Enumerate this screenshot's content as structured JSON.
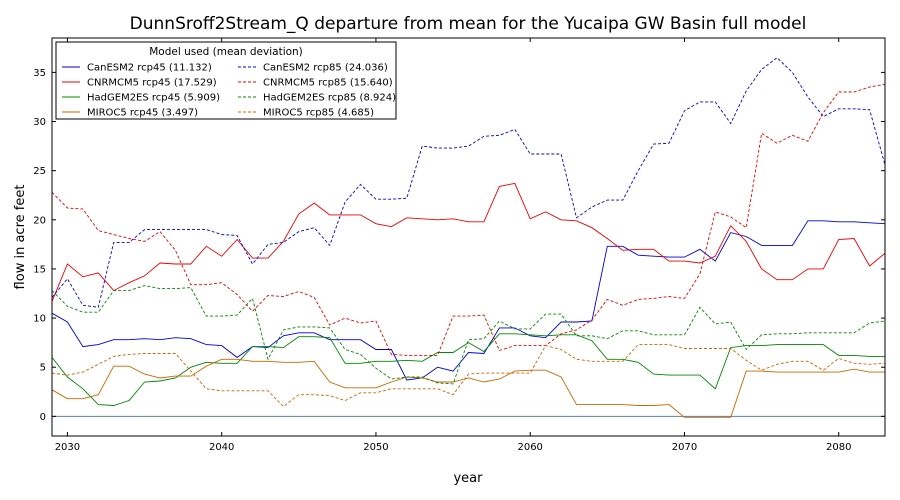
{
  "chart_data": {
    "type": "line",
    "title": "DunnSroff2Stream_Q departure from mean for the Yucaipa GW Basin full model",
    "xlabel": "year",
    "ylabel": "flow in acre feet",
    "xlim": [
      2029,
      2083
    ],
    "ylim": [
      -2,
      38.5
    ],
    "x_ticks": [
      2030,
      2040,
      2050,
      2060,
      2070,
      2080
    ],
    "y_ticks": [
      0,
      5,
      10,
      15,
      20,
      25,
      30,
      35
    ],
    "zero_line": {
      "value": 0,
      "color": "#5b7fa6"
    },
    "legend": {
      "title": "Model used (mean deviation)",
      "placement": "upper-left",
      "columns": 2
    },
    "x": [
      2029,
      2030,
      2031,
      2032,
      2033,
      2034,
      2035,
      2036,
      2037,
      2038,
      2039,
      2040,
      2041,
      2042,
      2043,
      2044,
      2045,
      2046,
      2047,
      2048,
      2049,
      2050,
      2051,
      2052,
      2053,
      2054,
      2055,
      2056,
      2057,
      2058,
      2059,
      2060,
      2061,
      2062,
      2063,
      2064,
      2065,
      2066,
      2067,
      2068,
      2069,
      2070,
      2071,
      2072,
      2073,
      2074,
      2075,
      2076,
      2077,
      2078,
      2079,
      2080,
      2081,
      2082,
      2083
    ],
    "series": [
      {
        "name": "CanESM2 rcp45 (11.132)",
        "color": "#0000dd",
        "dash": "solid",
        "values": [
          10.5,
          9.6,
          7.1,
          7.3,
          7.8,
          7.8,
          7.9,
          7.8,
          8.0,
          7.9,
          7.3,
          7.2,
          6.0,
          7.1,
          7.0,
          8.2,
          8.5,
          8.5,
          7.8,
          7.8,
          7.8,
          6.8,
          6.8,
          3.7,
          3.9,
          5.0,
          4.6,
          6.5,
          6.4,
          9.0,
          9.0,
          8.2,
          8.0,
          9.6,
          9.6,
          9.7,
          17.3,
          17.3,
          16.4,
          16.3,
          16.2,
          16.2,
          17.0,
          15.8,
          18.7,
          18.3,
          17.4,
          17.4,
          17.4,
          19.9,
          19.9,
          19.8,
          19.8,
          19.7,
          19.6
        ]
      },
      {
        "name": "CNRMCM5 rcp45 (17.529)",
        "color": "#ee0000",
        "dash": "solid",
        "values": [
          11.7,
          15.5,
          14.2,
          14.6,
          12.8,
          13.6,
          14.3,
          15.6,
          15.5,
          15.5,
          17.3,
          16.3,
          18.0,
          16.1,
          16.1,
          17.8,
          20.6,
          21.7,
          20.5,
          20.5,
          20.5,
          19.6,
          19.3,
          20.2,
          20.1,
          20.0,
          20.1,
          19.8,
          19.8,
          23.4,
          23.7,
          20.1,
          20.8,
          20.0,
          19.9,
          19.2,
          18.1,
          16.9,
          17.0,
          17.0,
          15.8,
          15.8,
          15.6,
          16.3,
          19.4,
          17.8,
          15.0,
          13.9,
          13.9,
          15.0,
          15.0,
          18.0,
          18.1,
          15.3,
          16.6
        ]
      },
      {
        "name": "HadGEM2ES rcp45 (5.909)",
        "color": "#008800",
        "dash": "solid",
        "values": [
          6.0,
          4.0,
          2.8,
          1.2,
          1.1,
          1.6,
          3.5,
          3.6,
          3.9,
          5.0,
          5.5,
          5.4,
          5.4,
          7.1,
          7.1,
          7.0,
          8.1,
          8.1,
          8.0,
          5.4,
          5.4,
          5.6,
          5.6,
          5.7,
          5.6,
          6.5,
          6.5,
          7.5,
          6.6,
          8.4,
          8.4,
          8.3,
          8.2,
          8.3,
          8.3,
          7.7,
          5.8,
          5.8,
          5.5,
          4.3,
          4.2,
          4.2,
          4.2,
          2.8,
          7.0,
          7.2,
          7.2,
          7.3,
          7.3,
          7.3,
          7.3,
          6.2,
          6.2,
          6.1,
          6.1
        ]
      },
      {
        "name": "MIROC5 rcp45 (3.497)",
        "color": "#cc6600",
        "dash": "solid",
        "values": [
          2.7,
          1.8,
          1.8,
          2.2,
          5.1,
          5.1,
          4.3,
          3.9,
          4.1,
          4.1,
          5.1,
          5.8,
          5.8,
          5.6,
          5.6,
          5.5,
          5.5,
          5.6,
          3.5,
          2.9,
          2.9,
          2.9,
          3.5,
          4.0,
          3.9,
          3.5,
          3.5,
          3.9,
          3.5,
          3.8,
          4.6,
          4.7,
          4.7,
          4.0,
          1.2,
          1.2,
          1.2,
          1.2,
          1.1,
          1.1,
          1.2,
          -0.1,
          -0.1,
          -0.1,
          -0.1,
          4.6,
          4.6,
          4.5,
          4.5,
          4.5,
          4.5,
          4.5,
          4.8,
          4.5,
          4.5
        ]
      },
      {
        "name": "CanESM2 rcp85 (24.036)",
        "color": "#0000dd",
        "dash": "dashed",
        "values": [
          12.1,
          14.0,
          11.3,
          11.1,
          17.7,
          17.7,
          19.0,
          19.0,
          19.0,
          19.0,
          19.0,
          18.5,
          18.4,
          15.5,
          17.5,
          17.7,
          18.8,
          19.2,
          17.4,
          21.8,
          23.6,
          22.1,
          22.1,
          22.2,
          27.5,
          27.3,
          27.3,
          27.5,
          28.5,
          28.6,
          29.2,
          26.7,
          26.7,
          26.7,
          20.2,
          21.3,
          22.0,
          22.0,
          25.0,
          27.7,
          27.8,
          31.1,
          32.0,
          32.0,
          29.8,
          33.1,
          35.3,
          36.5,
          35.0,
          32.5,
          30.5,
          31.3,
          31.3,
          31.2,
          25.6
        ]
      },
      {
        "name": "CNRMCM5 rcp85 (15.640)",
        "color": "#ee0000",
        "dash": "dashed",
        "values": [
          22.8,
          21.2,
          21.1,
          18.9,
          18.5,
          18.1,
          17.8,
          18.8,
          16.9,
          13.4,
          13.4,
          13.6,
          12.4,
          10.7,
          12.3,
          12.2,
          12.7,
          12.1,
          9.3,
          10.0,
          9.5,
          9.7,
          6.3,
          6.2,
          6.2,
          6.2,
          10.2,
          10.2,
          10.3,
          6.7,
          7.2,
          7.2,
          7.2,
          8.4,
          8.8,
          9.8,
          11.9,
          11.3,
          11.9,
          12.0,
          12.2,
          12.0,
          14.5,
          20.8,
          20.3,
          19.2,
          28.8,
          27.8,
          28.6,
          28.0,
          30.9,
          33.0,
          33.0,
          33.5,
          33.8
        ]
      },
      {
        "name": "HadGEM2ES rcp85 (8.924)",
        "color": "#008800",
        "dash": "dashed",
        "values": [
          12.8,
          11.2,
          10.6,
          10.6,
          12.8,
          12.8,
          13.3,
          13.0,
          13.0,
          13.1,
          10.2,
          10.2,
          10.3,
          12.0,
          5.8,
          8.8,
          9.1,
          9.1,
          9.0,
          6.8,
          6.3,
          4.9,
          3.8,
          4.0,
          4.0,
          3.4,
          3.3,
          7.8,
          7.9,
          9.7,
          8.9,
          8.9,
          10.4,
          10.4,
          8.2,
          8.2,
          7.9,
          8.7,
          8.7,
          8.3,
          8.3,
          8.3,
          11.1,
          9.4,
          9.6,
          6.8,
          8.3,
          8.4,
          8.4,
          8.5,
          8.5,
          8.5,
          8.5,
          9.5,
          9.7
        ]
      },
      {
        "name": "MIROC5 rcp85 (4.685)",
        "color": "#cc6600",
        "dash": "dashed",
        "values": [
          4.4,
          4.2,
          4.5,
          5.3,
          6.1,
          6.3,
          6.4,
          6.4,
          6.4,
          4.6,
          2.8,
          2.6,
          2.6,
          2.6,
          2.6,
          1.0,
          2.2,
          2.2,
          2.1,
          1.6,
          2.4,
          2.4,
          2.8,
          2.8,
          2.8,
          2.8,
          2.2,
          4.3,
          4.4,
          4.4,
          4.4,
          4.4,
          7.2,
          6.8,
          5.8,
          5.6,
          5.6,
          5.6,
          7.3,
          7.3,
          7.3,
          6.9,
          6.9,
          6.9,
          6.9,
          5.7,
          4.7,
          5.3,
          5.6,
          5.6,
          4.7,
          5.9,
          5.4,
          5.3,
          5.4
        ]
      }
    ]
  }
}
